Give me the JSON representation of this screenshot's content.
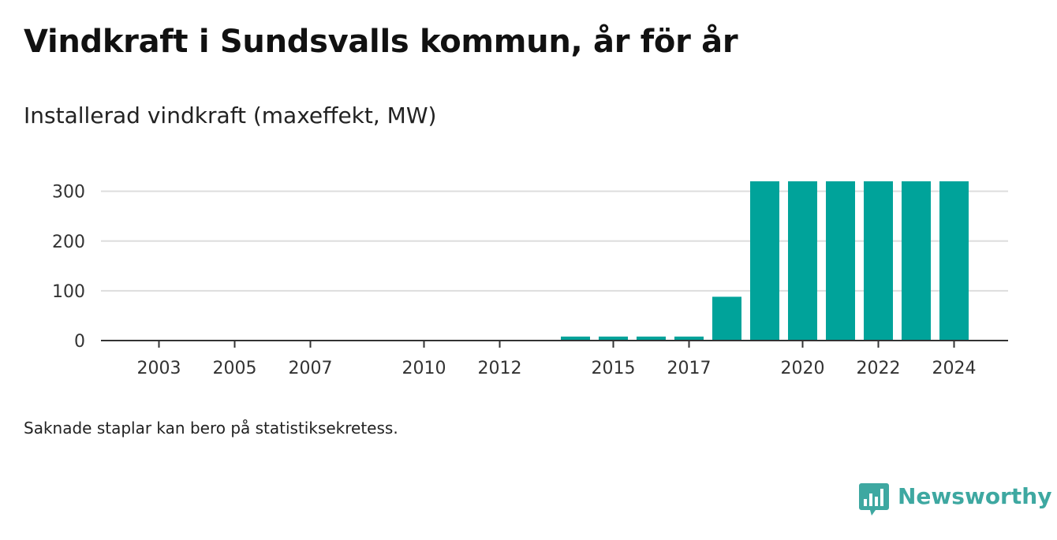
{
  "header": {
    "title": "Vindkraft i Sundsvalls kommun, år för år",
    "subtitle": "Installerad vindkraft (maxeffekt, MW)"
  },
  "footer": {
    "note": "Saknade staplar kan bero på statistiksekretess.",
    "brand_name": "Newsworthy"
  },
  "colors": {
    "bar": "#00a39a",
    "grid": "#dddddd",
    "axis": "#333333",
    "brand": "#3ea8a1"
  },
  "chart_data": {
    "type": "bar",
    "title": "Vindkraft i Sundsvalls kommun, år för år",
    "subtitle": "Installerad vindkraft (maxeffekt, MW)",
    "xlabel": "",
    "ylabel": "",
    "x": [
      2002,
      2003,
      2004,
      2005,
      2006,
      2007,
      2008,
      2009,
      2010,
      2011,
      2012,
      2013,
      2014,
      2015,
      2016,
      2017,
      2018,
      2019,
      2020,
      2021,
      2022,
      2023,
      2024
    ],
    "values": [
      null,
      null,
      null,
      null,
      null,
      null,
      null,
      null,
      null,
      null,
      null,
      null,
      8,
      8,
      8,
      8,
      88,
      320,
      320,
      320,
      320,
      320,
      320
    ],
    "x_ticks": [
      2003,
      2005,
      2007,
      2010,
      2012,
      2015,
      2017,
      2020,
      2022,
      2024
    ],
    "y_ticks": [
      0,
      100,
      200,
      300
    ],
    "ylim": [
      0,
      320
    ],
    "grid": true,
    "legend": "none"
  }
}
